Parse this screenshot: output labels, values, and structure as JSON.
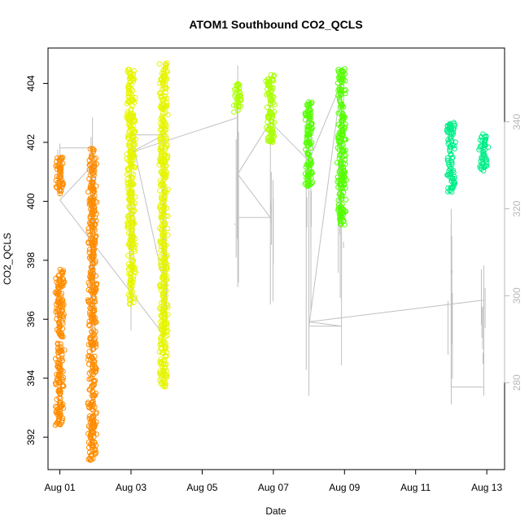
{
  "chart_data": {
    "type": "scatter",
    "title": "ATOM1 Southbound CO2_QCLS",
    "xlabel": "Date",
    "ylabel": "CO2_QCLS",
    "xlim": [
      "2016-07-31T16:00",
      "2016-08-13T12:00"
    ],
    "ylim": [
      390.9,
      405.2
    ],
    "y2lim": [
      260.0,
      357.0
    ],
    "x_ticks": [
      {
        "date": "2016-08-01",
        "label": "Aug 01"
      },
      {
        "date": "2016-08-03",
        "label": "Aug 03"
      },
      {
        "date": "2016-08-05",
        "label": "Aug 05"
      },
      {
        "date": "2016-08-07",
        "label": "Aug 07"
      },
      {
        "date": "2016-08-09",
        "label": "Aug 09"
      },
      {
        "date": "2016-08-11",
        "label": "Aug 11"
      },
      {
        "date": "2016-08-13",
        "label": "Aug 13"
      }
    ],
    "y_ticks": [
      392,
      394,
      396,
      398,
      400,
      402,
      404
    ],
    "y2_ticks": [
      280,
      300,
      320,
      340
    ],
    "grid": false,
    "series": [
      {
        "color": "#ff8c00",
        "clusters": [
          {
            "x": "2016-08-01T00:00",
            "ymin": 400.2,
            "ymax": 401.5
          },
          {
            "x": "2016-08-01T00:00",
            "ymin": 392.4,
            "ymax": 397.7
          },
          {
            "x": "2016-08-01T22:00",
            "ymin": 391.2,
            "ymax": 401.8
          }
        ]
      },
      {
        "color": "#e6f500",
        "clusters": [
          {
            "x": "2016-08-03T00:00",
            "ymin": 396.5,
            "ymax": 404.5
          },
          {
            "x": "2016-08-03T22:00",
            "ymin": 393.7,
            "ymax": 404.7
          }
        ]
      },
      {
        "color": "#aaff00",
        "clusters": [
          {
            "x": "2016-08-06T00:00",
            "ymin": 403.0,
            "ymax": 404.0
          },
          {
            "x": "2016-08-06T22:00",
            "ymin": 402.0,
            "ymax": 404.3
          }
        ]
      },
      {
        "color": "#55ff00",
        "clusters": [
          {
            "x": "2016-08-08T00:00",
            "ymin": 400.5,
            "ymax": 403.4
          },
          {
            "x": "2016-08-08T22:00",
            "ymin": 399.2,
            "ymax": 404.5
          }
        ]
      },
      {
        "color": "#00ee88",
        "clusters": [
          {
            "x": "2016-08-12T00:00",
            "ymin": 400.3,
            "ymax": 402.7
          },
          {
            "x": "2016-08-12T22:00",
            "ymin": 401.0,
            "ymax": 402.3
          }
        ]
      }
    ],
    "secondary_series": {
      "color": "#c0c0c0",
      "points": [
        [
          "2016-08-01T00:00",
          334
        ],
        [
          "2016-08-01T22:00",
          334
        ],
        [
          "2016-08-01T22:00",
          330
        ],
        [
          "2016-08-01T00:00",
          322
        ],
        [
          "2016-08-03T22:00",
          291
        ],
        [
          "2016-08-03T22:00",
          303
        ],
        [
          "2016-08-03T00:00",
          337
        ],
        [
          "2016-08-03T22:00",
          337
        ],
        [
          "2016-08-03T00:00",
          333
        ],
        [
          "2016-08-06T00:00",
          341
        ],
        [
          "2016-08-06T00:00",
          318
        ],
        [
          "2016-08-06T22:00",
          318
        ],
        [
          "2016-08-06T00:00",
          328
        ],
        [
          "2016-08-06T22:00",
          340
        ],
        [
          "2016-08-08T00:00",
          331
        ],
        [
          "2016-08-08T22:00",
          349
        ],
        [
          "2016-08-08T00:00",
          293
        ],
        [
          "2016-08-08T22:00",
          293
        ],
        [
          "2016-08-08T00:00",
          294
        ],
        [
          "2016-08-12T22:00",
          299
        ],
        [
          "2016-08-12T22:00",
          279
        ],
        [
          "2016-08-12T00:00",
          279
        ],
        [
          "2016-08-12T00:00",
          306
        ]
      ],
      "spikes": [
        {
          "x": "2016-08-01T00:00",
          "ymin": 323,
          "ymax": 335
        },
        {
          "x": "2016-08-01T22:00",
          "ymin": 286,
          "ymax": 341
        },
        {
          "x": "2016-08-03T00:00",
          "ymin": 292,
          "ymax": 335
        },
        {
          "x": "2016-08-03T22:00",
          "ymin": 291,
          "ymax": 340
        },
        {
          "x": "2016-08-06T00:00",
          "ymin": 302,
          "ymax": 353
        },
        {
          "x": "2016-08-06T22:00",
          "ymin": 298,
          "ymax": 345
        },
        {
          "x": "2016-08-08T00:00",
          "ymin": 277,
          "ymax": 345
        },
        {
          "x": "2016-08-08T22:00",
          "ymin": 284,
          "ymax": 350
        },
        {
          "x": "2016-08-12T00:00",
          "ymin": 275,
          "ymax": 320
        },
        {
          "x": "2016-08-12T22:00",
          "ymin": 277,
          "ymax": 307
        }
      ]
    }
  }
}
